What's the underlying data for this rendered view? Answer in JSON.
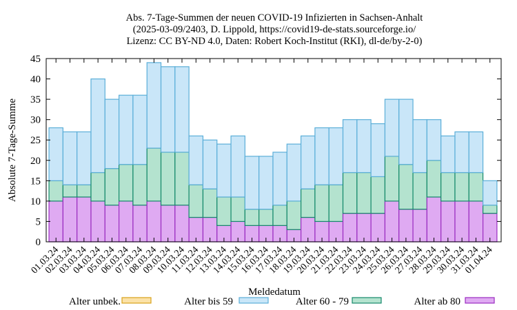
{
  "chart_data": {
    "type": "bar",
    "stacked": true,
    "title_lines": [
      "Abs. 7-Tage-Summen der neuen COVID-19 Infizierten in Sachsen-Anhalt",
      "(2025-03-09/2403, D. Lippold, https://covid19-de-stats.sourceforge.io/",
      "Lizenz: CC BY-ND 4.0, Daten: Robert Koch-Institut (RKI), dl-de/by-2-0)"
    ],
    "xlabel": "Meldedatum",
    "ylabel": "Absolute 7-Tage-Summe",
    "ylim": [
      0,
      45
    ],
    "yticks": [
      0,
      5,
      10,
      15,
      20,
      25,
      30,
      35,
      40,
      45
    ],
    "grid": false,
    "legend_position": "bottom",
    "categories": [
      "01.03.24",
      "02.03.24",
      "03.03.24",
      "04.03.24",
      "05.03.24",
      "06.03.24",
      "07.03.24",
      "08.03.24",
      "09.03.24",
      "10.03.24",
      "11.03.24",
      "12.03.24",
      "13.03.24",
      "14.03.24",
      "15.03.24",
      "16.03.24",
      "17.03.24",
      "18.03.24",
      "19.03.24",
      "20.03.24",
      "21.03.24",
      "22.03.24",
      "23.03.24",
      "24.03.24",
      "25.03.24",
      "26.03.24",
      "27.03.24",
      "28.03.24",
      "29.03.24",
      "30.03.24",
      "31.03.24",
      "01.04.24"
    ],
    "series": [
      {
        "name": "Alter ab 80",
        "fill": "#dfaaf2",
        "stroke": "#9a2cc0",
        "values": [
          10,
          11,
          11,
          10,
          9,
          10,
          9,
          10,
          9,
          9,
          6,
          6,
          4,
          5,
          4,
          4,
          4,
          3,
          6,
          5,
          5,
          7,
          7,
          7,
          10,
          8,
          8,
          11,
          10,
          10,
          10,
          7
        ]
      },
      {
        "name": "Alter 60 - 79",
        "fill": "#b4e3cf",
        "stroke": "#14896a",
        "values": [
          5,
          3,
          3,
          7,
          9,
          9,
          10,
          13,
          13,
          13,
          8,
          7,
          7,
          6,
          4,
          4,
          5,
          7,
          7,
          9,
          9,
          10,
          10,
          9,
          11,
          11,
          9,
          9,
          7,
          7,
          7,
          2
        ]
      },
      {
        "name": "Alter bis 59",
        "fill": "#c9e6f8",
        "stroke": "#5aaed8",
        "values": [
          13,
          13,
          13,
          23,
          17,
          17,
          17,
          21,
          21,
          21,
          12,
          12,
          13,
          15,
          13,
          13,
          13,
          14,
          13,
          14,
          14,
          13,
          13,
          13,
          14,
          16,
          13,
          10,
          9,
          10,
          10,
          6
        ]
      },
      {
        "name": "Alter unbek.",
        "fill": "#fbe2a8",
        "stroke": "#d9a21a",
        "values": [
          0,
          0,
          0,
          0,
          0,
          0,
          0,
          0,
          0,
          0,
          0,
          0,
          0,
          0,
          0,
          0,
          0,
          0,
          0,
          0,
          0,
          0,
          0,
          0,
          0,
          0,
          0,
          0,
          0,
          0,
          0,
          0
        ]
      }
    ],
    "legend_order": [
      "Alter unbek.",
      "Alter bis 59",
      "Alter 60 - 79",
      "Alter ab 80"
    ]
  }
}
